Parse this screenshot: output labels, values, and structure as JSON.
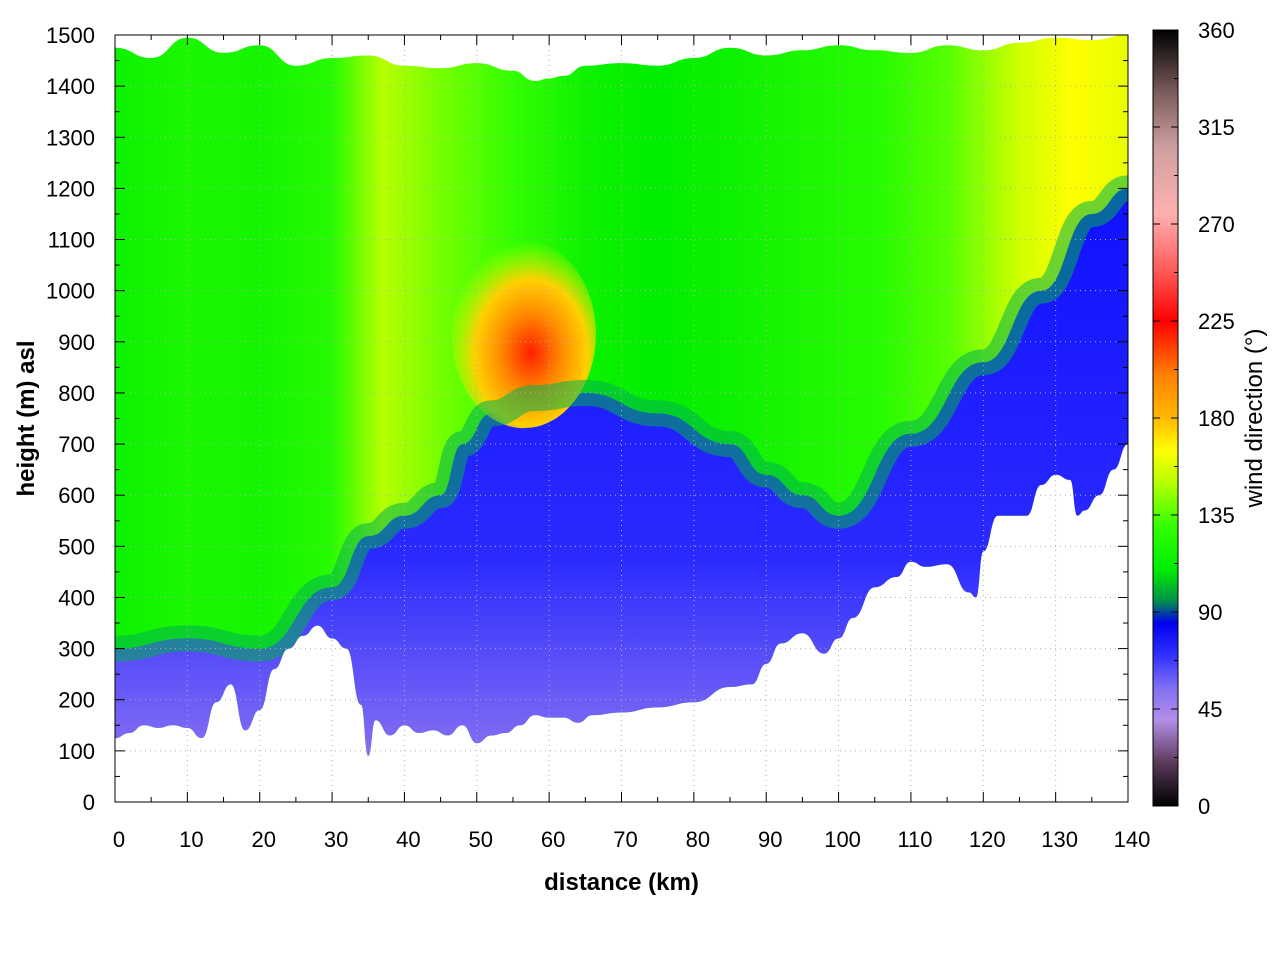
{
  "chart_data": {
    "type": "heatmap",
    "title": "",
    "xlabel": "distance (km)",
    "ylabel": "height (m) asl",
    "colorbar_label": "wind direction (°)",
    "xlim": [
      0,
      140
    ],
    "ylim": [
      0,
      1500
    ],
    "clim": [
      0,
      360
    ],
    "x_ticks": [
      0,
      10,
      20,
      30,
      40,
      50,
      60,
      70,
      80,
      90,
      100,
      110,
      120,
      130,
      140
    ],
    "y_ticks": [
      0,
      100,
      200,
      300,
      400,
      500,
      600,
      700,
      800,
      900,
      1000,
      1100,
      1200,
      1300,
      1400,
      1500
    ],
    "colorbar_ticks": [
      0,
      45,
      90,
      135,
      180,
      225,
      270,
      315,
      360
    ],
    "grid": true,
    "colormap": [
      [
        0,
        "#000000"
      ],
      [
        20,
        "#5a3a5a"
      ],
      [
        40,
        "#b58ee8"
      ],
      [
        55,
        "#7f6ff2"
      ],
      [
        70,
        "#3030ff"
      ],
      [
        85,
        "#0000ee"
      ],
      [
        95,
        "#008f4a"
      ],
      [
        110,
        "#00ee00"
      ],
      [
        130,
        "#33ff00"
      ],
      [
        150,
        "#b7ff00"
      ],
      [
        165,
        "#ffff00"
      ],
      [
        180,
        "#ffb800"
      ],
      [
        200,
        "#ff8000"
      ],
      [
        225,
        "#ff0000"
      ],
      [
        250,
        "#ff6060"
      ],
      [
        275,
        "#ffb0b0"
      ],
      [
        305,
        "#cfa0a0"
      ],
      [
        330,
        "#7f5f5f"
      ],
      [
        360,
        "#000000"
      ]
    ],
    "terrain_height_m": {
      "x": [
        0,
        2,
        4,
        6,
        8,
        10,
        12,
        14,
        16,
        18,
        20,
        22,
        24,
        26,
        28,
        30,
        32,
        34,
        35,
        36,
        38,
        40,
        42,
        44,
        46,
        48,
        50,
        52,
        54,
        56,
        58,
        60,
        62,
        64,
        66,
        70,
        75,
        80,
        85,
        88,
        90,
        92,
        95,
        98,
        100,
        102,
        105,
        108,
        110,
        112,
        115,
        118,
        119,
        120,
        122,
        124,
        126,
        128,
        130,
        132,
        133,
        134,
        136,
        138,
        140
      ],
      "y": [
        125,
        135,
        150,
        145,
        150,
        145,
        125,
        195,
        230,
        140,
        180,
        260,
        300,
        325,
        345,
        320,
        300,
        190,
        90,
        160,
        130,
        150,
        135,
        140,
        130,
        150,
        115,
        130,
        135,
        150,
        170,
        165,
        165,
        155,
        170,
        175,
        185,
        195,
        225,
        230,
        270,
        310,
        330,
        290,
        320,
        360,
        420,
        440,
        470,
        460,
        465,
        410,
        400,
        490,
        560,
        560,
        560,
        620,
        640,
        630,
        560,
        570,
        600,
        650,
        700
      ]
    },
    "top_of_data_m": {
      "x": [
        0,
        5,
        10,
        15,
        20,
        25,
        30,
        35,
        40,
        45,
        50,
        55,
        58,
        60,
        62,
        65,
        70,
        75,
        80,
        85,
        90,
        95,
        100,
        105,
        110,
        115,
        120,
        125,
        130,
        135,
        140
      ],
      "y": [
        1475,
        1455,
        1495,
        1465,
        1480,
        1440,
        1455,
        1460,
        1440,
        1435,
        1445,
        1430,
        1410,
        1415,
        1420,
        1440,
        1445,
        1440,
        1455,
        1475,
        1460,
        1470,
        1480,
        1470,
        1465,
        1480,
        1470,
        1485,
        1495,
        1490,
        1500
      ]
    },
    "fields": {
      "upper_layer_deg": [
        {
          "x": 0,
          "deg": 115
        },
        {
          "x": 10,
          "deg": 120
        },
        {
          "x": 20,
          "deg": 118
        },
        {
          "x": 30,
          "deg": 125
        },
        {
          "x": 37,
          "deg": 150
        },
        {
          "x": 45,
          "deg": 140
        },
        {
          "x": 55,
          "deg": 130
        },
        {
          "x": 65,
          "deg": 115
        },
        {
          "x": 75,
          "deg": 110
        },
        {
          "x": 85,
          "deg": 115
        },
        {
          "x": 95,
          "deg": 120
        },
        {
          "x": 105,
          "deg": 125
        },
        {
          "x": 115,
          "deg": 135
        },
        {
          "x": 125,
          "deg": 155
        },
        {
          "x": 132,
          "deg": 165
        },
        {
          "x": 140,
          "deg": 160
        }
      ],
      "lower_layer_deg": 75,
      "warm_core": {
        "x_range": [
          50,
          63
        ],
        "y_range": [
          780,
          1050
        ],
        "peak_deg": 220
      }
    }
  }
}
